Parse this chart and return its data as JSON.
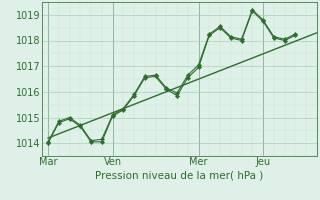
{
  "bg_color": "#dff0e8",
  "line_color": "#2d6e2d",
  "grid_major_color": "#aacfbb",
  "grid_minor_color": "#c5e3d4",
  "xlabel": "Pression niveau de la mer( hPa )",
  "ylim": [
    1013.5,
    1019.5
  ],
  "yticks": [
    1014,
    1015,
    1016,
    1017,
    1018,
    1019
  ],
  "xtick_labels": [
    "Mar",
    "Ven",
    "Mer",
    "Jeu"
  ],
  "xtick_positions": [
    0,
    3,
    7,
    10
  ],
  "xlim": [
    -0.3,
    12.5
  ],
  "day_lines": [
    0,
    3,
    7,
    10
  ],
  "series1_x": [
    0,
    0.5,
    1.0,
    1.5,
    2.0,
    2.5,
    3.0,
    3.5,
    4.0,
    4.5,
    5.0,
    5.5,
    6.0,
    6.5,
    7.0,
    7.5,
    8.0,
    8.5,
    9.0,
    9.5,
    10.0,
    10.5,
    11.0,
    11.5
  ],
  "series1_y": [
    1014.0,
    1014.8,
    1014.95,
    1014.65,
    1014.05,
    1014.05,
    1015.05,
    1015.3,
    1015.85,
    1016.55,
    1016.6,
    1016.1,
    1015.85,
    1016.55,
    1016.95,
    1018.2,
    1018.5,
    1018.1,
    1018.0,
    1019.15,
    1018.75,
    1018.1,
    1018.0,
    1018.2
  ],
  "series2_x": [
    0,
    0.5,
    1.0,
    1.5,
    2.0,
    2.5,
    3.0,
    3.5,
    4.0,
    4.5,
    5.0,
    5.5,
    6.0,
    6.5,
    7.0,
    7.5,
    8.0,
    8.5,
    9.0,
    9.5,
    10.0,
    10.5,
    11.0,
    11.5
  ],
  "series2_y": [
    1014.05,
    1014.85,
    1015.0,
    1014.7,
    1014.1,
    1014.15,
    1015.1,
    1015.35,
    1015.9,
    1016.6,
    1016.65,
    1016.15,
    1015.95,
    1016.65,
    1017.05,
    1018.25,
    1018.55,
    1018.15,
    1018.05,
    1019.2,
    1018.8,
    1018.15,
    1018.05,
    1018.25
  ],
  "trend_x": [
    0,
    12.5
  ],
  "trend_y": [
    1014.2,
    1018.3
  ],
  "figsize": [
    3.2,
    2.0
  ],
  "dpi": 100
}
